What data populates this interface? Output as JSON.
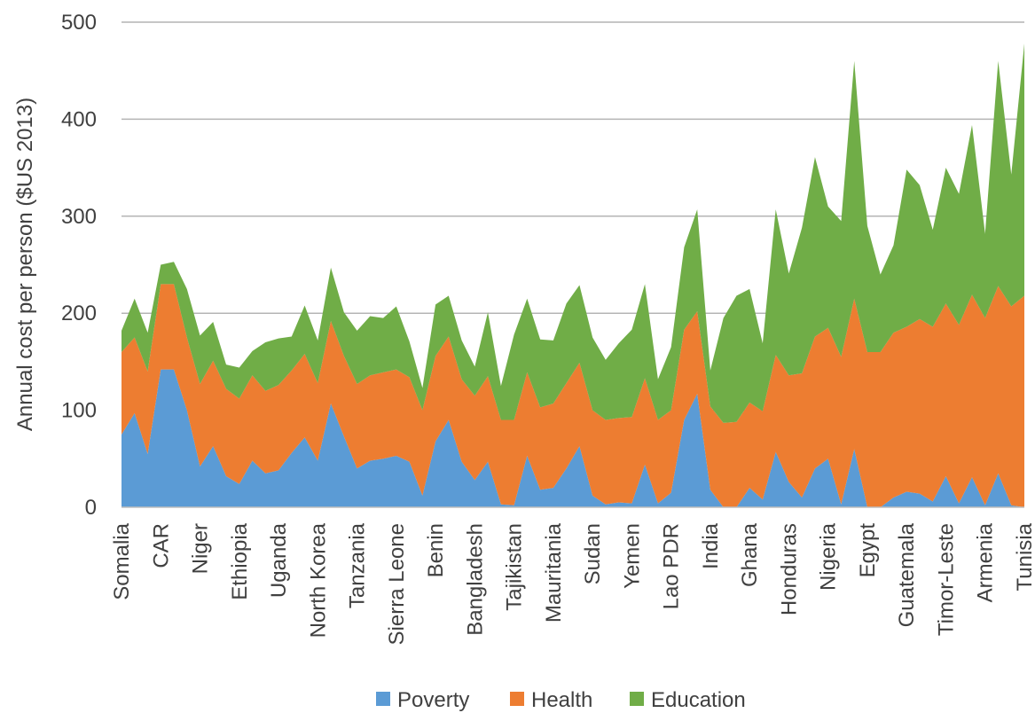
{
  "chart_data": {
    "type": "area",
    "stacked": true,
    "ylabel": "Annual cost per person ($US 2013)",
    "xlabel": "",
    "ylim": [
      0,
      500
    ],
    "yticks": [
      0,
      100,
      200,
      300,
      400,
      500
    ],
    "grid": "horizontal",
    "legend_position": "bottom",
    "x_tick_labels": [
      "Somalia",
      "CAR",
      "Niger",
      "Ethiopia",
      "Uganda",
      "North Korea",
      "Tanzania",
      "Sierra Leone",
      "Benin",
      "Bangladesh",
      "Tajikistan",
      "Mauritania",
      "Sudan",
      "Yemen",
      "Lao PDR",
      "India",
      "Ghana",
      "Honduras",
      "Nigeria",
      "Egypt",
      "Guatemala",
      "Timor-Leste",
      "Armenia",
      "Tunisia"
    ],
    "x_tick_index": [
      0,
      3,
      6,
      9,
      12,
      15,
      18,
      21,
      24,
      27,
      30,
      33,
      36,
      39,
      42,
      45,
      48,
      51,
      54,
      57,
      60,
      63,
      66,
      69
    ],
    "n_points": 70,
    "series": [
      {
        "name": "Poverty",
        "color": "#5b9bd5",
        "values": [
          75,
          97,
          55,
          142,
          142,
          100,
          42,
          63,
          32,
          24,
          48,
          35,
          38,
          56,
          72,
          48,
          107,
          73,
          40,
          48,
          50,
          53,
          47,
          12,
          68,
          90,
          47,
          28,
          47,
          3,
          2,
          53,
          18,
          20,
          40,
          63,
          12,
          3,
          5,
          4,
          44,
          4,
          15,
          90,
          117,
          18,
          0,
          0,
          20,
          8,
          57,
          26,
          10,
          40,
          50,
          3,
          60,
          0,
          0,
          10,
          16,
          14,
          6,
          32,
          4,
          31,
          2,
          35,
          2,
          0
        ]
      },
      {
        "name": "Health",
        "color": "#ed7d31",
        "values": [
          85,
          78,
          85,
          88,
          88,
          75,
          85,
          88,
          90,
          88,
          88,
          85,
          88,
          85,
          86,
          80,
          85,
          83,
          87,
          88,
          89,
          89,
          87,
          88,
          88,
          86,
          85,
          87,
          88,
          87,
          88,
          86,
          85,
          87,
          88,
          86,
          88,
          87,
          87,
          89,
          89,
          86,
          85,
          93,
          85,
          86,
          87,
          88,
          88,
          91,
          100,
          110,
          128,
          136,
          135,
          152,
          155,
          160,
          160,
          170,
          170,
          180,
          180,
          178,
          184,
          188,
          193,
          193,
          205,
          218
        ]
      },
      {
        "name": "Education",
        "color": "#70ad47",
        "values": [
          22,
          40,
          40,
          20,
          23,
          50,
          50,
          40,
          25,
          32,
          25,
          50,
          48,
          35,
          50,
          44,
          55,
          45,
          55,
          61,
          56,
          65,
          37,
          23,
          53,
          42,
          40,
          30,
          66,
          35,
          88,
          76,
          70,
          65,
          82,
          80,
          75,
          62,
          77,
          90,
          97,
          42,
          65,
          85,
          105,
          37,
          108,
          130,
          117,
          70,
          150,
          105,
          150,
          185,
          125,
          140,
          245,
          130,
          80,
          90,
          162,
          138,
          100,
          140,
          135,
          175,
          87,
          232,
          136,
          260
        ]
      }
    ]
  }
}
